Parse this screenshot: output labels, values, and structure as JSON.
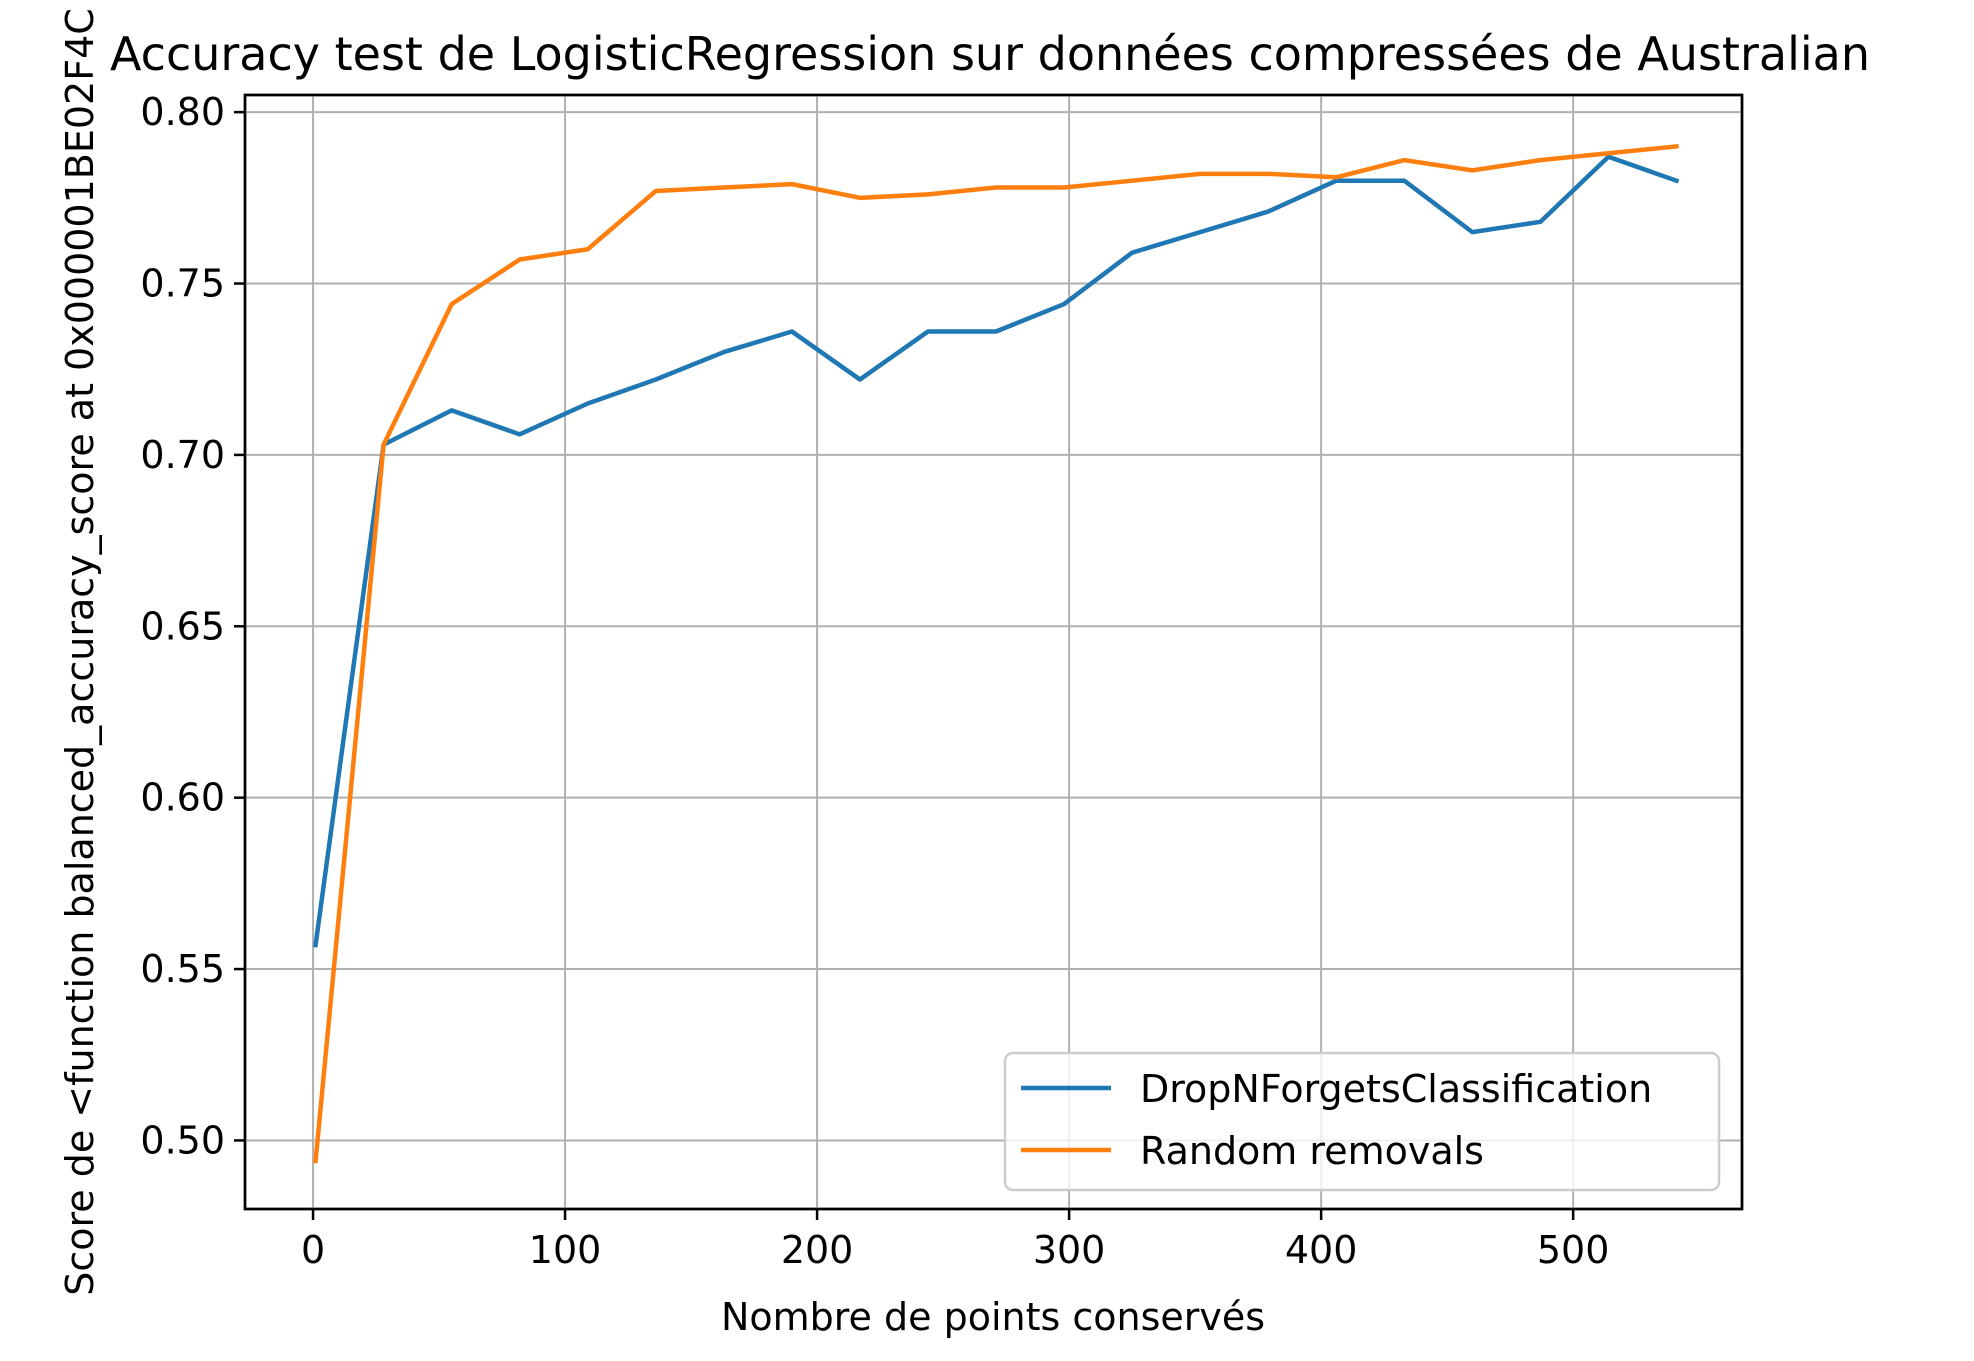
{
  "chart_data": {
    "type": "line",
    "title": "Accuracy test de LogisticRegression sur données compressées de Australian",
    "xlabel": "Nombre de points conservés",
    "ylabel": "Score de <function balanced_accuracy_score at 0x000001BE02F4C",
    "xlim": [
      -27,
      567
    ],
    "ylim": [
      0.48,
      0.805
    ],
    "xticks": [
      0,
      100,
      200,
      300,
      400,
      500
    ],
    "xtick_labels": [
      "0",
      "100",
      "200",
      "300",
      "400",
      "500"
    ],
    "yticks": [
      0.5,
      0.55,
      0.6,
      0.65,
      0.7,
      0.75,
      0.8
    ],
    "ytick_labels": [
      "0.50",
      "0.55",
      "0.60",
      "0.65",
      "0.70",
      "0.75",
      "0.80"
    ],
    "grid": true,
    "legend_position": "lower-right",
    "x": [
      1,
      28,
      55,
      82,
      109,
      136,
      163,
      190,
      217,
      244,
      271,
      298,
      325,
      352,
      379,
      406,
      433,
      460,
      487,
      514,
      541
    ],
    "series": [
      {
        "name": "DropNForgetsClassification",
        "color": "#1f77b4",
        "values": [
          0.557,
          0.703,
          0.713,
          0.706,
          0.715,
          0.722,
          0.73,
          0.736,
          0.722,
          0.736,
          0.736,
          0.744,
          0.759,
          0.765,
          0.771,
          0.78,
          0.78,
          0.765,
          0.768,
          0.787,
          0.78
        ]
      },
      {
        "name": "Random removals",
        "color": "#ff7f0e",
        "values": [
          0.494,
          0.703,
          0.744,
          0.757,
          0.76,
          0.777,
          0.778,
          0.779,
          0.775,
          0.776,
          0.778,
          0.778,
          0.78,
          0.782,
          0.782,
          0.781,
          0.786,
          0.783,
          0.786,
          0.788,
          0.79
        ]
      }
    ]
  }
}
